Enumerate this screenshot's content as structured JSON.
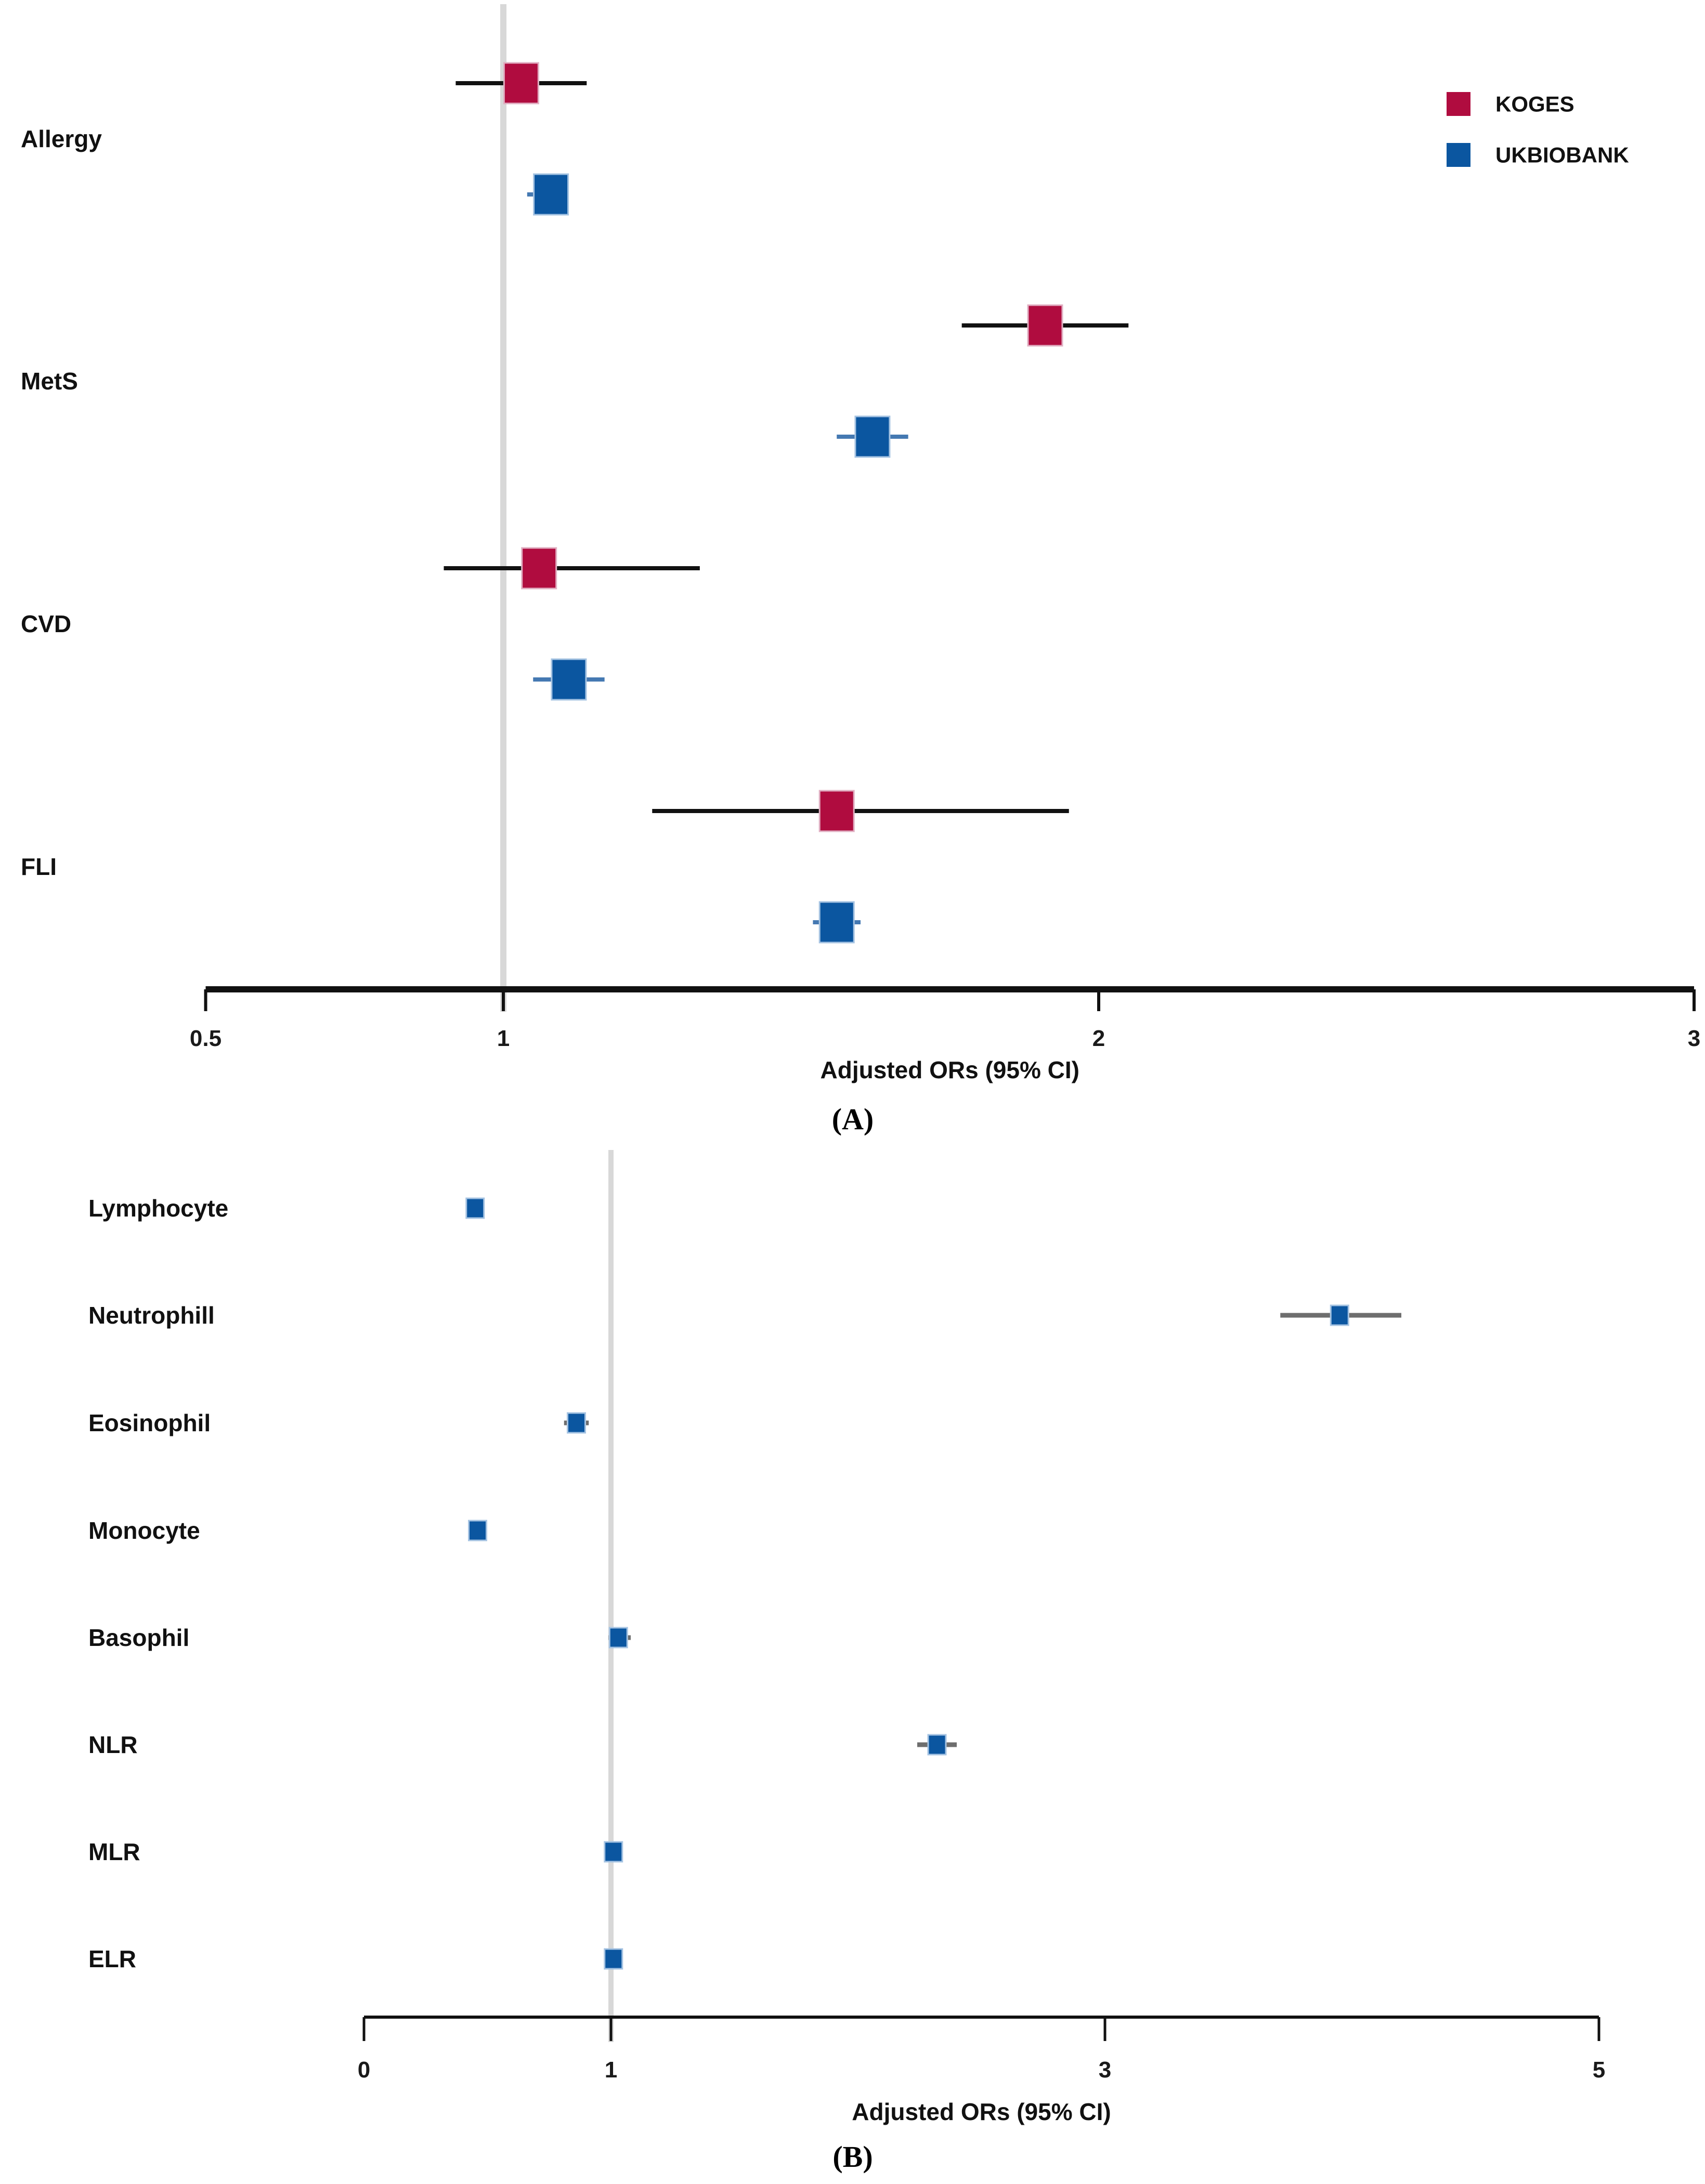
{
  "colors": {
    "koges": "#B00C3F",
    "ukbiobank": "#0B56A0",
    "marker_stroke_koges": "#E0AFC2",
    "marker_stroke_ukb": "#A5C3E2",
    "ci_black": "#111111",
    "ci_steelblue": "#4579B2",
    "ci_gray": "#6E6E6E",
    "axis": "#111111",
    "grid": "#D8D8D8",
    "background": "#FFFFFF"
  },
  "chart_data": [
    {
      "type": "forest",
      "panel": "A",
      "caption": "(A)",
      "xlabel": "Adjusted ORs (95% CI)",
      "x_range": [
        0.5,
        3
      ],
      "ref_line": 1,
      "x_ticks": [
        {
          "value": 0.5,
          "label": "0.5"
        },
        {
          "value": 1,
          "label": "1"
        },
        {
          "value": 2,
          "label": "2"
        },
        {
          "value": 3,
          "label": "3"
        }
      ],
      "legend": {
        "position": "top-right",
        "items": [
          {
            "name": "KOGES",
            "color_key": "koges"
          },
          {
            "name": "UKBIOBANK",
            "color_key": "ukbiobank"
          }
        ]
      },
      "categories": [
        "Allergy",
        "MetS",
        "CVD",
        "FLI"
      ],
      "series": [
        {
          "name": "KOGES",
          "color_key": "koges",
          "stroke_key": "marker_stroke_koges",
          "ci_color_key": "ci_black",
          "points": [
            {
              "category": "Allergy",
              "or": 1.03,
              "lo": 0.92,
              "hi": 1.14
            },
            {
              "category": "MetS",
              "or": 1.91,
              "lo": 1.77,
              "hi": 2.05
            },
            {
              "category": "CVD",
              "or": 1.06,
              "lo": 0.9,
              "hi": 1.33
            },
            {
              "category": "FLI",
              "or": 1.56,
              "lo": 1.25,
              "hi": 1.95
            }
          ]
        },
        {
          "name": "UKBIOBANK",
          "color_key": "ukbiobank",
          "stroke_key": "marker_stroke_ukb",
          "ci_color_key": "ci_steelblue",
          "points": [
            {
              "category": "Allergy",
              "or": 1.08,
              "lo": 1.04,
              "hi": 1.11
            },
            {
              "category": "MetS",
              "or": 1.62,
              "lo": 1.56,
              "hi": 1.68
            },
            {
              "category": "CVD",
              "or": 1.11,
              "lo": 1.05,
              "hi": 1.17
            },
            {
              "category": "FLI",
              "or": 1.56,
              "lo": 1.52,
              "hi": 1.6
            }
          ]
        }
      ]
    },
    {
      "type": "forest",
      "panel": "B",
      "caption": "(B)",
      "xlabel": "Adjusted ORs (95% CI)",
      "x_range": [
        0,
        5
      ],
      "ref_line": 1,
      "x_ticks": [
        {
          "value": 0,
          "label": "0"
        },
        {
          "value": 1,
          "label": "1"
        },
        {
          "value": 3,
          "label": "3"
        },
        {
          "value": 5,
          "label": "5"
        }
      ],
      "categories": [
        "Lymphocyte",
        "Neutrophill",
        "Eosinophil",
        "Monocyte",
        "Basophil",
        "NLR",
        "MLR",
        "ELR"
      ],
      "series": [
        {
          "name": "UKBIOBANK",
          "color_key": "ukbiobank",
          "stroke_key": "marker_stroke_ukb",
          "ci_color_key": "ci_gray",
          "points": [
            {
              "category": "Lymphocyte",
              "or": 0.45,
              "lo": 0.43,
              "hi": 0.47
            },
            {
              "category": "Neutrophill",
              "or": 3.95,
              "lo": 3.71,
              "hi": 4.2
            },
            {
              "category": "Eosinophil",
              "or": 0.86,
              "lo": 0.81,
              "hi": 0.91
            },
            {
              "category": "Monocyte",
              "or": 0.46,
              "lo": 0.44,
              "hi": 0.48
            },
            {
              "category": "Basophil",
              "or": 1.03,
              "lo": 0.99,
              "hi": 1.08
            },
            {
              "category": "NLR",
              "or": 2.32,
              "lo": 2.24,
              "hi": 2.4
            },
            {
              "category": "MLR",
              "or": 1.01,
              "lo": 0.98,
              "hi": 1.04
            },
            {
              "category": "ELR",
              "or": 1.01,
              "lo": 0.99,
              "hi": 1.03
            }
          ]
        }
      ]
    }
  ]
}
